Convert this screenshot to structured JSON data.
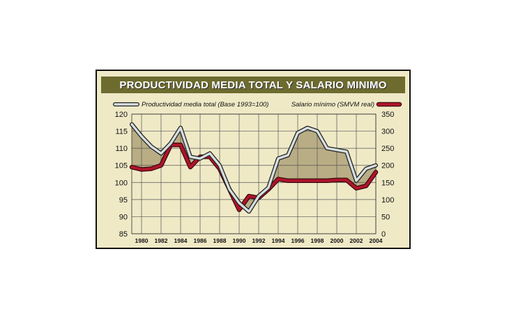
{
  "colors": {
    "frame_bg": "#efe9c6",
    "title_bg": "#6d6b2e",
    "fill_area": "#b9ad85",
    "productivity": "#d6dede",
    "wage": "#b0142a"
  },
  "chart_data": {
    "type": "line",
    "title": "PRODUCTIVIDAD MEDIA TOTAL Y SALARIO MINIMO",
    "x": [
      1979,
      1980,
      1981,
      1982,
      1983,
      1984,
      1985,
      1986,
      1987,
      1988,
      1989,
      1990,
      1991,
      1992,
      1993,
      1994,
      1995,
      1996,
      1997,
      1998,
      1999,
      2000,
      2001,
      2002,
      2003,
      2004
    ],
    "x_tick_labels": [
      "1980",
      "1982",
      "1984",
      "1986",
      "1988",
      "1990",
      "1992",
      "1994",
      "1996",
      "1998",
      "2000",
      "2002",
      "2004"
    ],
    "y_left_ticks": [
      "120",
      "115",
      "110",
      "105",
      "100",
      "95",
      "90",
      "85"
    ],
    "y_left_range": [
      85,
      120
    ],
    "y_right_ticks": [
      "350",
      "300",
      "250",
      "200",
      "150",
      "100",
      "50",
      "0"
    ],
    "y_right_range": [
      0,
      350
    ],
    "series": [
      {
        "name": "Productividad media total (Base 1993=100)",
        "axis": "left",
        "values": [
          117,
          113.5,
          110.5,
          108.5,
          111.5,
          116,
          107.5,
          107,
          108.5,
          105,
          98,
          94,
          91.5,
          96,
          98.5,
          107,
          108,
          114.5,
          116,
          115,
          110,
          109.5,
          109,
          100.5,
          104,
          105
        ]
      },
      {
        "name": "Salario mínimo (SMVM real)",
        "axis": "right",
        "values": [
          195,
          188,
          190,
          200,
          260,
          260,
          195,
          225,
          225,
          190,
          130,
          70,
          110,
          105,
          130,
          160,
          155,
          155,
          155,
          155,
          155,
          157,
          157,
          133,
          140,
          180
        ]
      }
    ],
    "grid": true,
    "legend_position": "top"
  }
}
